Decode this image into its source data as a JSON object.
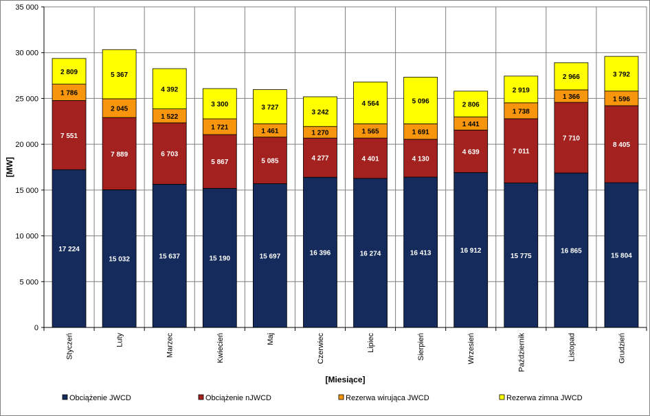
{
  "chart_data": {
    "type": "bar",
    "stacked": true,
    "title": "",
    "xlabel": "[Miesiące]",
    "ylabel": "[MW]",
    "ylim": [
      0,
      35000
    ],
    "yticks": [
      0,
      5000,
      10000,
      15000,
      20000,
      25000,
      30000,
      35000
    ],
    "ytick_labels": [
      "0",
      "5 000",
      "10 000",
      "15 000",
      "20 000",
      "25 000",
      "30 000",
      "35 000"
    ],
    "grid": true,
    "legend_position": "bottom",
    "categories": [
      "Styczeń",
      "Luty",
      "Marzec",
      "Kwiecień",
      "Maj",
      "Czerwiec",
      "Lipiec",
      "Sierpień",
      "Wrzesień",
      "Październik",
      "Listopad",
      "Grudzień"
    ],
    "series": [
      {
        "name": "Obciążenie JWCD",
        "color": "#142B5C",
        "label_color": "#ffffff",
        "values": [
          17224,
          15032,
          15637,
          15190,
          15697,
          16396,
          16274,
          16413,
          16912,
          15775,
          16865,
          15804
        ],
        "labels": [
          "17 224",
          "15 032",
          "15 637",
          "15 190",
          "15 697",
          "16 396",
          "16 274",
          "16 413",
          "16 912",
          "15 775",
          "16 865",
          "15 804"
        ]
      },
      {
        "name": "Obciążenie nJWCD",
        "color": "#A3211E",
        "label_color": "#ffffff",
        "values": [
          7551,
          7889,
          6703,
          5867,
          5085,
          4277,
          4401,
          4130,
          4639,
          7011,
          7710,
          8405
        ],
        "labels": [
          "7 551",
          "7 889",
          "6 703",
          "5 867",
          "5 085",
          "4 277",
          "4 401",
          "4 130",
          "4 639",
          "7 011",
          "7 710",
          "8 405"
        ]
      },
      {
        "name": "Rezerwa wirująca JWCD",
        "color": "#F7960C",
        "label_color": "#000000",
        "values": [
          1786,
          2045,
          1522,
          1721,
          1461,
          1270,
          1565,
          1691,
          1441,
          1738,
          1366,
          1596
        ],
        "labels": [
          "1 786",
          "2 045",
          "1 522",
          "1 721",
          "1 461",
          "1 270",
          "1 565",
          "1 691",
          "1 441",
          "1 738",
          "1 366",
          "1 596"
        ]
      },
      {
        "name": "Rezerwa zimna JWCD",
        "color": "#FFFF00",
        "label_color": "#000000",
        "values": [
          2809,
          5367,
          4392,
          3300,
          3727,
          3242,
          4564,
          5096,
          2806,
          2919,
          2966,
          3792
        ],
        "labels": [
          "2 809",
          "5 367",
          "4 392",
          "3 300",
          "3 727",
          "3 242",
          "4 564",
          "5 096",
          "2 806",
          "2 919",
          "2 966",
          "3 792"
        ]
      }
    ]
  }
}
